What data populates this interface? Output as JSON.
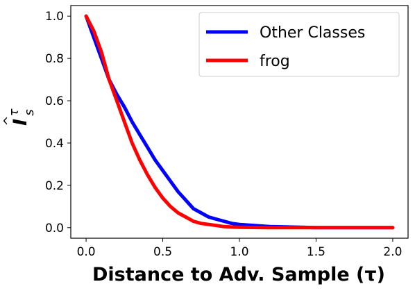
{
  "chart_data": {
    "type": "line",
    "xlabel": "Distance to Adv. Sample (τ)",
    "ylabel": "I",
    "ylabel_superscript": "τ",
    "ylabel_subscript": "s",
    "ylabel_hat": "^",
    "xlim": [
      -0.1,
      2.1
    ],
    "ylim": [
      -0.05,
      1.05
    ],
    "xticks": [
      0.0,
      0.5,
      1.0,
      1.5,
      2.0
    ],
    "xtick_labels": [
      "0.0",
      "0.5",
      "1.0",
      "1.5",
      "2.0"
    ],
    "yticks": [
      0.0,
      0.2,
      0.4,
      0.6,
      0.8,
      1.0
    ],
    "ytick_labels": [
      "0.0",
      "0.2",
      "0.4",
      "0.6",
      "0.8",
      "1.0"
    ],
    "grid": false,
    "legend_position": "top-right",
    "series": [
      {
        "name": "Other Classes",
        "color": "#0000ff",
        "x": [
          0.0,
          0.05,
          0.1,
          0.15,
          0.2,
          0.25,
          0.3,
          0.35,
          0.4,
          0.45,
          0.5,
          0.55,
          0.6,
          0.65,
          0.7,
          0.75,
          0.8,
          0.85,
          0.9,
          0.95,
          1.0,
          1.1,
          1.2,
          1.5,
          2.0
        ],
        "y": [
          1.0,
          0.9,
          0.8,
          0.7,
          0.63,
          0.57,
          0.5,
          0.44,
          0.38,
          0.32,
          0.27,
          0.22,
          0.17,
          0.13,
          0.09,
          0.07,
          0.05,
          0.04,
          0.03,
          0.02,
          0.015,
          0.01,
          0.005,
          0.0,
          0.0
        ]
      },
      {
        "name": "frog",
        "color": "#ff0000",
        "x": [
          0.0,
          0.05,
          0.1,
          0.15,
          0.2,
          0.25,
          0.3,
          0.35,
          0.4,
          0.45,
          0.5,
          0.55,
          0.6,
          0.65,
          0.7,
          0.75,
          0.8,
          0.85,
          0.9,
          0.95,
          1.0,
          1.1,
          1.2,
          1.5,
          2.0
        ],
        "y": [
          1.0,
          0.93,
          0.83,
          0.7,
          0.6,
          0.5,
          0.4,
          0.32,
          0.25,
          0.19,
          0.14,
          0.1,
          0.07,
          0.05,
          0.03,
          0.02,
          0.015,
          0.01,
          0.005,
          0.003,
          0.002,
          0.001,
          0.0,
          0.0,
          0.0
        ]
      }
    ]
  }
}
